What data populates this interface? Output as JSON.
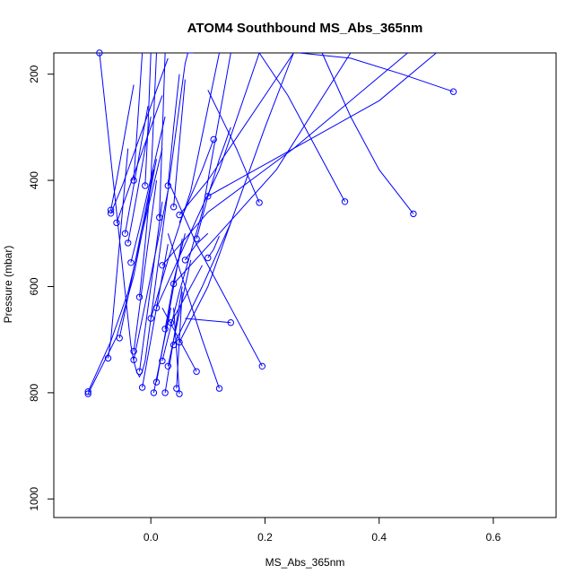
{
  "chart_data": {
    "type": "line",
    "title": "ATOM4 Southbound MS_Abs_365nm",
    "xlabel": "MS_Abs_365nm",
    "ylabel": "Pressure (mbar)",
    "xlim": [
      -0.17,
      0.71
    ],
    "ylim": [
      1035,
      160
    ],
    "y_reversed": true,
    "xticks": [
      0.0,
      0.2,
      0.4,
      0.6
    ],
    "xtick_labels": [
      "0.0",
      "0.2",
      "0.4",
      "0.6"
    ],
    "yticks": [
      200,
      400,
      600,
      800,
      1000
    ],
    "ytick_labels": [
      "200",
      "400",
      "600",
      "800",
      "1000"
    ],
    "grid": false,
    "color": "#0000ff",
    "series": [
      {
        "x": [
          -0.09,
          -0.085,
          -0.08,
          -0.075,
          -0.07,
          -0.065,
          -0.06,
          -0.055,
          -0.05,
          -0.045,
          -0.04,
          -0.035,
          -0.03,
          -0.025,
          -0.02,
          -0.015,
          -0.01,
          -0.005,
          0.0,
          0.005,
          0.01,
          0.015,
          0.02,
          0.025,
          0.03,
          0.035,
          0.04,
          0.045,
          0.05,
          0.055,
          0.06,
          0.065,
          0.07,
          0.075
        ],
        "y": [
          160,
          210,
          260,
          310,
          360,
          410,
          460,
          510,
          560,
          610,
          660,
          710,
          740,
          760,
          770,
          760,
          740,
          700,
          660,
          620,
          580,
          540,
          500,
          460,
          420,
          380,
          340,
          300,
          260,
          220,
          180,
          160,
          160,
          160
        ]
      },
      {
        "x": [
          -0.075,
          -0.07,
          -0.065,
          -0.06,
          -0.055,
          -0.05,
          -0.045,
          -0.04
        ],
        "y": [
          735,
          700,
          640,
          580,
          520,
          460,
          400,
          340
        ]
      },
      {
        "x": [
          -0.11,
          -0.07,
          -0.04,
          -0.02,
          0.0,
          0.02
        ],
        "y": [
          798,
          703,
          611,
          520,
          430,
          340
        ]
      },
      {
        "x": [
          -0.11,
          -0.06,
          -0.03,
          -0.01,
          0.01
        ],
        "y": [
          802,
          695,
          580,
          470,
          360
        ]
      },
      {
        "x": [
          -0.07,
          -0.06,
          -0.05,
          -0.04,
          -0.03
        ],
        "y": [
          456,
          400,
          340,
          280,
          220
        ]
      },
      {
        "x": [
          -0.07,
          -0.05,
          -0.03,
          -0.01,
          0.01,
          0.03
        ],
        "y": [
          462,
          410,
          350,
          290,
          230,
          170
        ]
      },
      {
        "x": [
          -0.06,
          -0.04,
          -0.02,
          0.0,
          0.02
        ],
        "y": [
          480,
          420,
          360,
          300,
          240
        ]
      },
      {
        "x": [
          -0.055,
          -0.04,
          -0.025,
          -0.01,
          0.005
        ],
        "y": [
          697,
          620,
          540,
          460,
          380
        ]
      },
      {
        "x": [
          -0.045,
          -0.035,
          -0.025,
          -0.015,
          -0.005
        ],
        "y": [
          500,
          440,
          380,
          320,
          260
        ]
      },
      {
        "x": [
          -0.04,
          -0.03,
          -0.02,
          -0.01,
          0.0
        ],
        "y": [
          518,
          460,
          400,
          340,
          280
        ]
      },
      {
        "x": [
          -0.035,
          -0.02,
          -0.005,
          0.01,
          0.025
        ],
        "y": [
          555,
          490,
          420,
          350,
          280
        ]
      },
      {
        "x": [
          -0.03,
          -0.02,
          -0.01,
          0.0,
          0.01
        ],
        "y": [
          722,
          640,
          560,
          480,
          400
        ]
      },
      {
        "x": [
          -0.03,
          -0.015,
          0.0,
          0.015,
          0.03
        ],
        "y": [
          738,
          660,
          580,
          500,
          420
        ]
      },
      {
        "x": [
          -0.02,
          -0.01,
          0.0,
          0.01,
          0.02
        ],
        "y": [
          760,
          680,
          600,
          520,
          440
        ]
      },
      {
        "x": [
          -0.015,
          0.0,
          0.015,
          0.03
        ],
        "y": [
          790,
          700,
          610,
          520
        ]
      },
      {
        "x": [
          0.01,
          0.025,
          0.04,
          0.055
        ],
        "y": [
          780,
          690,
          600,
          510
        ]
      },
      {
        "x": [
          0.005,
          0.02,
          0.035
        ],
        "y": [
          800,
          720,
          640
        ]
      },
      {
        "x": [
          0.025,
          0.04,
          0.055
        ],
        "y": [
          800,
          700,
          600
        ]
      },
      {
        "x": [
          0.045,
          0.05,
          0.055
        ],
        "y": [
          792,
          700,
          610
        ]
      },
      {
        "x": [
          0.05,
          0.045,
          0.04
        ],
        "y": [
          802,
          720,
          640
        ]
      },
      {
        "x": [
          0.08,
          0.05,
          0.02
        ],
        "y": [
          760,
          700,
          640
        ]
      },
      {
        "x": [
          0.12,
          0.09,
          0.06,
          0.03
        ],
        "y": [
          792,
          700,
          600,
          500
        ]
      },
      {
        "x": [
          0.195,
          0.14,
          0.08,
          0.03
        ],
        "y": [
          750,
          640,
          520,
          400
        ]
      },
      {
        "x": [
          0.14,
          0.1,
          0.06
        ],
        "y": [
          668,
          664,
          660
        ]
      },
      {
        "x": [
          0.05,
          0.1,
          0.15,
          0.2,
          0.25
        ],
        "y": [
          705,
          600,
          450,
          300,
          160
        ]
      },
      {
        "x": [
          0.04,
          0.09,
          0.14
        ],
        "y": [
          710,
          600,
          480
        ]
      },
      {
        "x": [
          0.035,
          0.06,
          0.09
        ],
        "y": [
          668,
          620,
          560
        ]
      },
      {
        "x": [
          0.03,
          0.05,
          0.07
        ],
        "y": [
          750,
          650,
          550
        ]
      },
      {
        "x": [
          0.025,
          0.04,
          0.06
        ],
        "y": [
          680,
          590,
          500
        ]
      },
      {
        "x": [
          0.06,
          0.08,
          0.1
        ],
        "y": [
          550,
          520,
          500
        ]
      },
      {
        "x": [
          0.1,
          0.11,
          0.12
        ],
        "y": [
          546,
          530,
          505
        ]
      },
      {
        "x": [
          0.08,
          0.1,
          0.12,
          0.14
        ],
        "y": [
          510,
          430,
          360,
          300
        ]
      },
      {
        "x": [
          0.11,
          0.09,
          0.07,
          0.05
        ],
        "y": [
          323,
          380,
          430,
          480
        ]
      },
      {
        "x": [
          0.1,
          0.25,
          0.4,
          0.5
        ],
        "y": [
          430,
          340,
          250,
          160
        ]
      },
      {
        "x": [
          0.19,
          0.15,
          0.1
        ],
        "y": [
          442,
          340,
          230
        ]
      },
      {
        "x": [
          0.34,
          0.29,
          0.24,
          0.19
        ],
        "y": [
          440,
          340,
          240,
          160
        ]
      },
      {
        "x": [
          0.46,
          0.4,
          0.35,
          0.3
        ],
        "y": [
          463,
          380,
          280,
          160
        ]
      },
      {
        "x": [
          0.53,
          0.44,
          0.35,
          0.26
        ],
        "y": [
          233,
          200,
          170,
          160
        ]
      },
      {
        "x": [
          0.05,
          0.1,
          0.15,
          0.2,
          0.25
        ],
        "y": [
          465,
          400,
          320,
          240,
          160
        ]
      },
      {
        "x": [
          0.03,
          0.04,
          0.05
        ],
        "y": [
          410,
          300,
          200
        ]
      },
      {
        "x": [
          0.04,
          0.05,
          0.06
        ],
        "y": [
          450,
          330,
          210
        ]
      },
      {
        "x": [
          0.02,
          0.1,
          0.25,
          0.45
        ],
        "y": [
          560,
          460,
          340,
          160
        ]
      },
      {
        "x": [
          0.04,
          0.12,
          0.22,
          0.35
        ],
        "y": [
          595,
          500,
          380,
          160
        ]
      },
      {
        "x": [
          0.01,
          0.06,
          0.12,
          0.19
        ],
        "y": [
          640,
          520,
          380,
          160
        ]
      },
      {
        "x": [
          0.0,
          0.03,
          0.07,
          0.12
        ],
        "y": [
          660,
          550,
          420,
          160
        ]
      },
      {
        "x": [
          0.02,
          0.05,
          0.09,
          0.14
        ],
        "y": [
          740,
          610,
          460,
          160
        ]
      },
      {
        "x": [
          -0.02,
          -0.01,
          0.0,
          0.01
        ],
        "y": [
          620,
          520,
          400,
          160
        ]
      },
      {
        "x": [
          -0.03,
          -0.025,
          -0.02,
          -0.015
        ],
        "y": [
          400,
          320,
          240,
          160
        ]
      },
      {
        "x": [
          -0.01,
          -0.005,
          0.0
        ],
        "y": [
          410,
          300,
          160
        ]
      },
      {
        "x": [
          0.015,
          0.02,
          0.025
        ],
        "y": [
          470,
          320,
          160
        ]
      }
    ]
  }
}
